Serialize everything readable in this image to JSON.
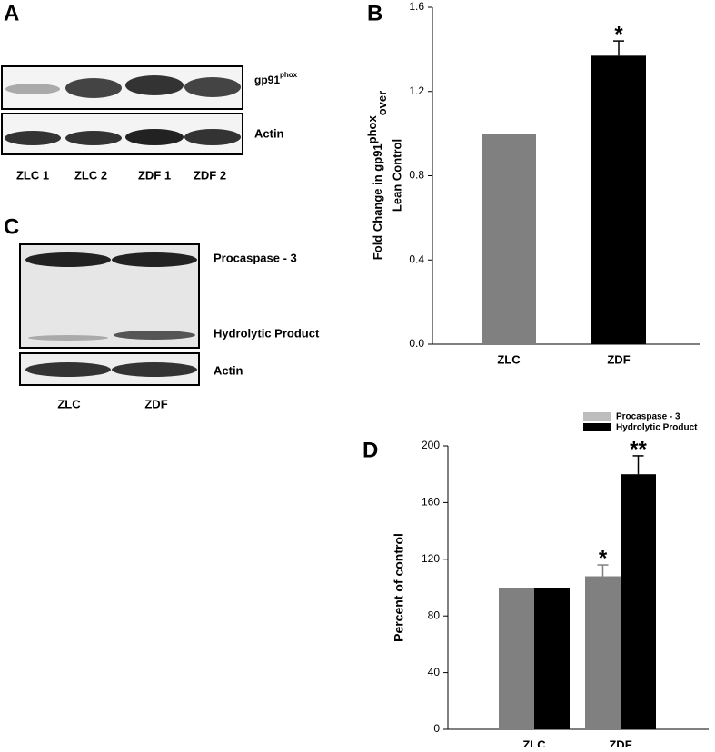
{
  "blots": [
    {
      "panel": "A",
      "rows": [
        {
          "label": "gp91",
          "sup": "phox"
        },
        {
          "label": "Actin"
        }
      ],
      "lanes": [
        "ZLC 1",
        "ZLC 2",
        "ZDF 1",
        "ZDF 2"
      ]
    },
    {
      "panel": "C",
      "rows": [
        {
          "label": "Procaspase - 3"
        },
        {
          "label": "Hydrolytic Product"
        },
        {
          "label": "Actin"
        }
      ],
      "lanes": [
        "ZLC",
        "ZDF"
      ]
    }
  ],
  "chart_data": [
    {
      "type": "bar",
      "panel": "B",
      "ylabel": {
        "line1": "Fold Change in gp91",
        "sup": "phox",
        "sub": "over",
        "line2": "Lean Control"
      },
      "categories": [
        "ZLC",
        "ZDF"
      ],
      "values": [
        1.0,
        1.37
      ],
      "errors": [
        null,
        0.07
      ],
      "colors": [
        "#808080",
        "#000000"
      ],
      "annotations": [
        null,
        "*"
      ],
      "ylim": [
        0,
        1.6
      ],
      "yticks": [
        {
          "value": 0,
          "label": "0.0"
        },
        0.4,
        0.8,
        1.2,
        1.6
      ]
    },
    {
      "type": "bar",
      "panel": "D",
      "ylabel": "Percent of control",
      "categories": [
        "ZLC",
        "ZDF"
      ],
      "series": [
        {
          "name": "Procaspase - 3",
          "color": "#808080",
          "values": [
            100,
            108
          ],
          "errors": [
            null,
            8
          ],
          "annotations": [
            null,
            "*"
          ]
        },
        {
          "name": "Hydrolytic Product",
          "color": "#000000",
          "values": [
            100,
            180
          ],
          "errors": [
            null,
            13
          ],
          "annotations": [
            null,
            "**"
          ]
        }
      ],
      "ylim": [
        0,
        200
      ],
      "yticks": [
        0,
        40,
        80,
        120,
        160,
        200
      ],
      "legend": "top-right"
    }
  ]
}
